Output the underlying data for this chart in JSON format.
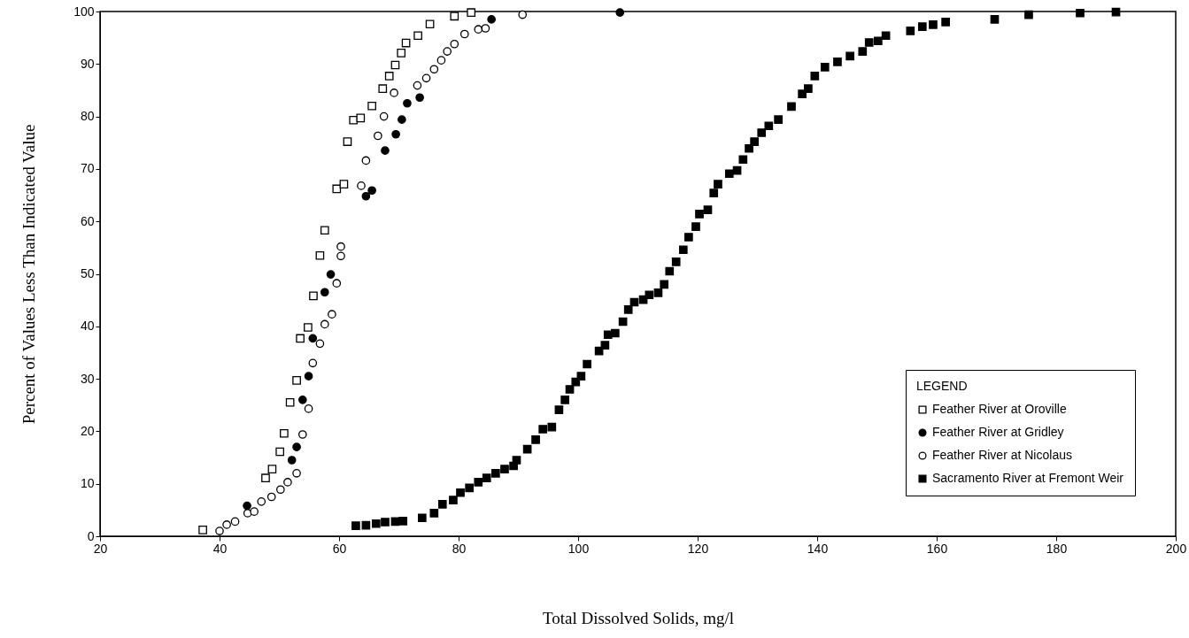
{
  "chart_data": {
    "type": "scatter",
    "xlabel": "Total Dissolved Solids, mg/l",
    "ylabel": "Percent of Values Less Than Indicated Value",
    "legend_title": "LEGEND",
    "legend": "bottom right",
    "grid": false,
    "xlim": [
      20,
      200
    ],
    "xticks": [
      20,
      40,
      60,
      80,
      100,
      120,
      140,
      160,
      180,
      200
    ],
    "ylim": [
      0,
      100
    ],
    "yticks": [
      0,
      10,
      20,
      30,
      40,
      50,
      60,
      70,
      80,
      90,
      100
    ],
    "series": [
      {
        "name": "Feather River at Oroville",
        "color": "#ffffff",
        "marker": "square",
        "x": [
          37.2,
          47.7,
          48.8,
          50.1,
          50.8,
          51.8,
          52.9,
          53.5,
          54.8,
          55.7,
          56.8,
          57.6,
          59.6,
          60.8,
          61.4,
          62.4,
          63.6,
          65.5,
          67.3,
          68.4,
          69.4,
          70.4,
          71.2,
          73.2,
          75.2,
          79.3,
          82.1
        ],
        "values": [
          1.2,
          11.1,
          12.8,
          16.1,
          19.6,
          25.5,
          29.7,
          37.7,
          39.8,
          45.8,
          53.5,
          58.3,
          66.2,
          67.1,
          75.2,
          79.3,
          79.7,
          82,
          85.3,
          87.7,
          89.8,
          92.1,
          94,
          95.4,
          97.6,
          99.1,
          99.8
        ]
      },
      {
        "name": "Feather River at Gridley",
        "color": "#000000",
        "marker": "circle",
        "x": [
          44.6,
          52.1,
          52.9,
          53.9,
          54.9,
          55.6,
          57.6,
          58.6,
          64.5,
          65.5,
          67.7,
          69.5,
          70.5,
          71.4,
          73.5,
          85.5,
          107
        ],
        "values": [
          5.8,
          14.5,
          17,
          26,
          30.5,
          37.7,
          46.5,
          49.9,
          64.8,
          65.9,
          73.5,
          76.6,
          79.4,
          82.5,
          83.6,
          98.5,
          99.8
        ]
      },
      {
        "name": "Feather River at Nicolaus",
        "color": "#ffffff",
        "marker": "circle",
        "x": [
          40,
          41.2,
          42.6,
          44.7,
          45.8,
          47,
          48.7,
          50.2,
          51.4,
          52.9,
          53.9,
          54.9,
          55.6,
          56.8,
          57.6,
          58.8,
          59.6,
          60.3,
          60.3,
          63.7,
          64.5,
          66.5,
          67.5,
          69.2,
          73.1,
          74.6,
          75.9,
          77.1,
          78.1,
          79.3,
          81,
          83.3,
          84.5,
          90.7
        ],
        "values": [
          1,
          2.2,
          2.8,
          4.4,
          4.7,
          6.6,
          7.5,
          8.9,
          10.3,
          12,
          19.4,
          24.3,
          33,
          36.7,
          40.4,
          42.3,
          48.2,
          53.4,
          55.2,
          66.8,
          71.6,
          76.3,
          80,
          84.5,
          85.9,
          87.3,
          89,
          90.7,
          92.4,
          93.8,
          95.7,
          96.6,
          96.8,
          99.4
        ]
      },
      {
        "name": "Sacramento River at Fremont Weir",
        "color": "#000000",
        "marker": "square",
        "x": [
          62.8,
          64.5,
          66.2,
          67.7,
          69.4,
          70.7,
          73.9,
          75.9,
          77.3,
          79.1,
          80.3,
          81.8,
          83.3,
          84.7,
          86.2,
          87.7,
          89.2,
          89.7,
          91.5,
          92.9,
          94.1,
          95.6,
          96.8,
          97.8,
          98.6,
          99.6,
          100.5,
          101.5,
          103.5,
          104.5,
          105,
          106.2,
          107.5,
          108.4,
          109.4,
          110.9,
          111.9,
          113.4,
          114.4,
          115.3,
          116.4,
          117.6,
          118.5,
          119.7,
          120.3,
          121.7,
          122.7,
          123.4,
          125.3,
          126.6,
          127.6,
          128.6,
          129.5,
          130.7,
          131.9,
          133.5,
          135.7,
          137.5,
          138.5,
          139.6,
          141.3,
          143.4,
          145.5,
          147.6,
          148.7,
          150.2,
          151.5,
          155.6,
          157.6,
          159.4,
          161.5,
          169.7,
          175.4,
          184,
          190
        ],
        "values": [
          2,
          2.1,
          2.4,
          2.7,
          2.8,
          2.9,
          3.5,
          4.4,
          6.1,
          6.9,
          8.3,
          9.2,
          10.3,
          11.1,
          12,
          12.8,
          13.4,
          14.5,
          16.6,
          18.4,
          20.4,
          20.8,
          24.1,
          26,
          28,
          29.4,
          30.5,
          32.8,
          35.3,
          36.4,
          38.4,
          38.7,
          40.9,
          43.2,
          44.6,
          45.1,
          46,
          46.4,
          48,
          50.5,
          52.3,
          54.6,
          57,
          59,
          61.4,
          62.2,
          65.4,
          67.1,
          69.1,
          69.7,
          71.8,
          73.9,
          75.2,
          76.9,
          78.2,
          79.4,
          81.9,
          84.3,
          85.3,
          87.7,
          89.4,
          90.4,
          91.5,
          92.4,
          94.1,
          94.4,
          95.4,
          96.3,
          97.1,
          97.5,
          98,
          98.5,
          99.4,
          99.7,
          99.9
        ]
      }
    ]
  }
}
